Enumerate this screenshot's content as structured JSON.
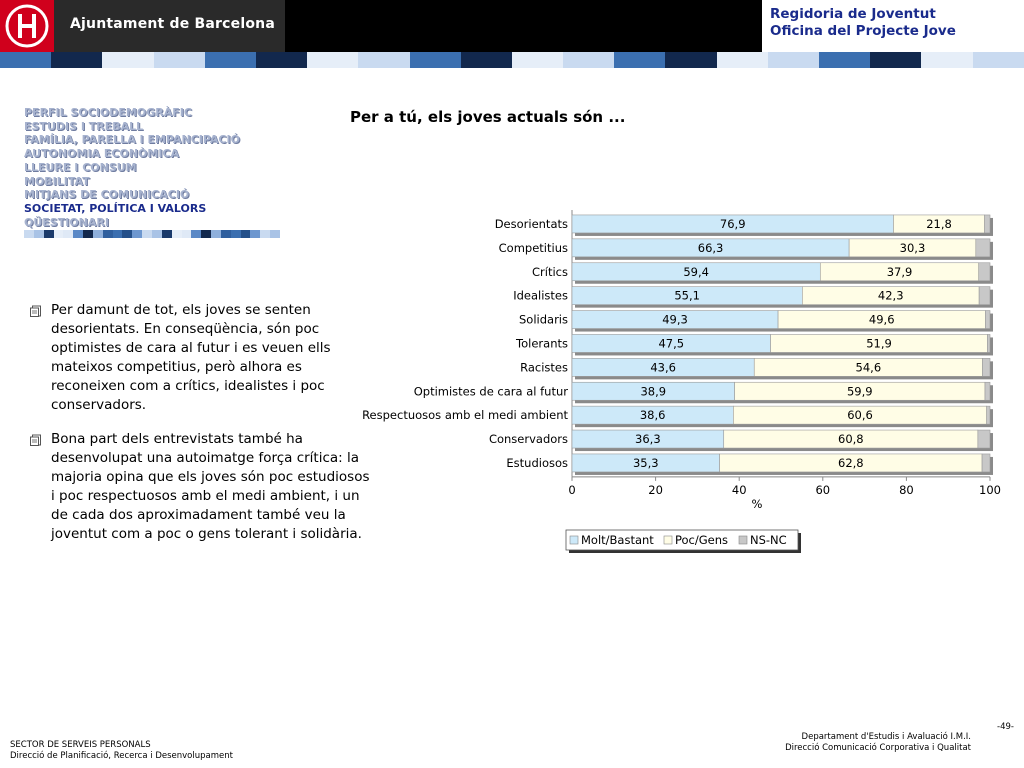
{
  "header": {
    "org_name": "Ajuntament de Barcelona",
    "right_line1": "Regidoria de Joventut",
    "right_line2": "Oficina del Projecte Jove"
  },
  "nav": {
    "items": [
      {
        "label": "PERFIL SOCIODEMOGRÀFIC",
        "active": false
      },
      {
        "label": "ESTUDIS I TREBALL",
        "active": false
      },
      {
        "label": "FAMÍLIA, PARELLA I EMPANCIPACIÓ",
        "active": false
      },
      {
        "label": "AUTONOMIA ECONÒMICA",
        "active": false
      },
      {
        "label": "LLEURE I CONSUM",
        "active": false
      },
      {
        "label": "MOBILITAT",
        "active": false
      },
      {
        "label": "MITJANS DE COMUNICACIÓ",
        "active": false
      },
      {
        "label": "SOCIETAT, POLÍTICA I VALORS",
        "active": true
      },
      {
        "label": "QÜESTIONARI",
        "active": false
      }
    ]
  },
  "bullets": [
    "Per damunt de tot, els joves se senten desorientats. En conseqüència, són poc optimistes de cara al futur i es veuen ells mateixos competitius, però alhora es reconeixen com a crítics, idealistes i poc conservadors.",
    "Bona part dels entrevistats també ha desenvolupat una autoimatge força crítica: la majoria opina que els joves són poc estudiosos i poc respectuosos amb el medi ambient, i un de cada dos aproximadament també veu la joventut com a poc o gens tolerant i solidària."
  ],
  "footer": {
    "left_line1": "SECTOR DE SERVEIS PERSONALS",
    "left_line2": "Direcció de Planificació, Recerca i Desenvolupament",
    "right_line1": "Departament d'Estudis i Avaluació I.M.I.",
    "right_line2": "Direcció Comunicació Corporativa i Qualitat",
    "page": "-49-"
  },
  "colors": {
    "series_molt": "#cde9f9",
    "series_poc": "#fffde6",
    "series_nsnc": "#c8c8c8",
    "nav_active": "#1a2b8c",
    "nav_inactive": "#a7b3cf",
    "header_blue": "#1a2b8c",
    "logo_red": "#d0001c"
  },
  "chart_data": {
    "type": "bar",
    "orientation": "horizontal",
    "stacked": true,
    "title": "Per a tú, els joves actuals són ...",
    "xlabel": "%",
    "ylabel": "",
    "xlim": [
      0,
      100
    ],
    "xticks": [
      0,
      20,
      40,
      60,
      80,
      100
    ],
    "legend_position": "bottom",
    "grid": false,
    "categories": [
      "Desorientats",
      "Competitius",
      "Crítics",
      "Idealistes",
      "Solidaris",
      "Tolerants",
      "Racistes",
      "Optimistes de cara al futur",
      "Respectuosos amb el medi ambient",
      "Conservadors",
      "Estudiosos"
    ],
    "series": [
      {
        "name": "Molt/Bastant",
        "values": [
          76.9,
          66.3,
          59.4,
          55.1,
          49.3,
          47.5,
          43.6,
          38.9,
          38.6,
          36.3,
          35.3
        ]
      },
      {
        "name": "Poc/Gens",
        "values": [
          21.8,
          30.3,
          37.9,
          42.3,
          49.6,
          51.9,
          54.6,
          59.9,
          60.6,
          60.8,
          62.8
        ]
      },
      {
        "name": "NS-NC",
        "values": [
          1.3,
          3.4,
          2.7,
          2.6,
          1.1,
          0.6,
          1.8,
          1.2,
          0.8,
          2.9,
          1.9
        ]
      }
    ],
    "value_labels": [
      [
        "76,9",
        "66,3",
        "59,4",
        "55,1",
        "49,3",
        "47,5",
        "43,6",
        "38,9",
        "38,6",
        "36,3",
        "35,3"
      ],
      [
        "21,8",
        "30,3",
        "37,9",
        "42,3",
        "49,6",
        "51,9",
        "54,6",
        "59,9",
        "60,6",
        "60,8",
        "62,8"
      ]
    ]
  }
}
